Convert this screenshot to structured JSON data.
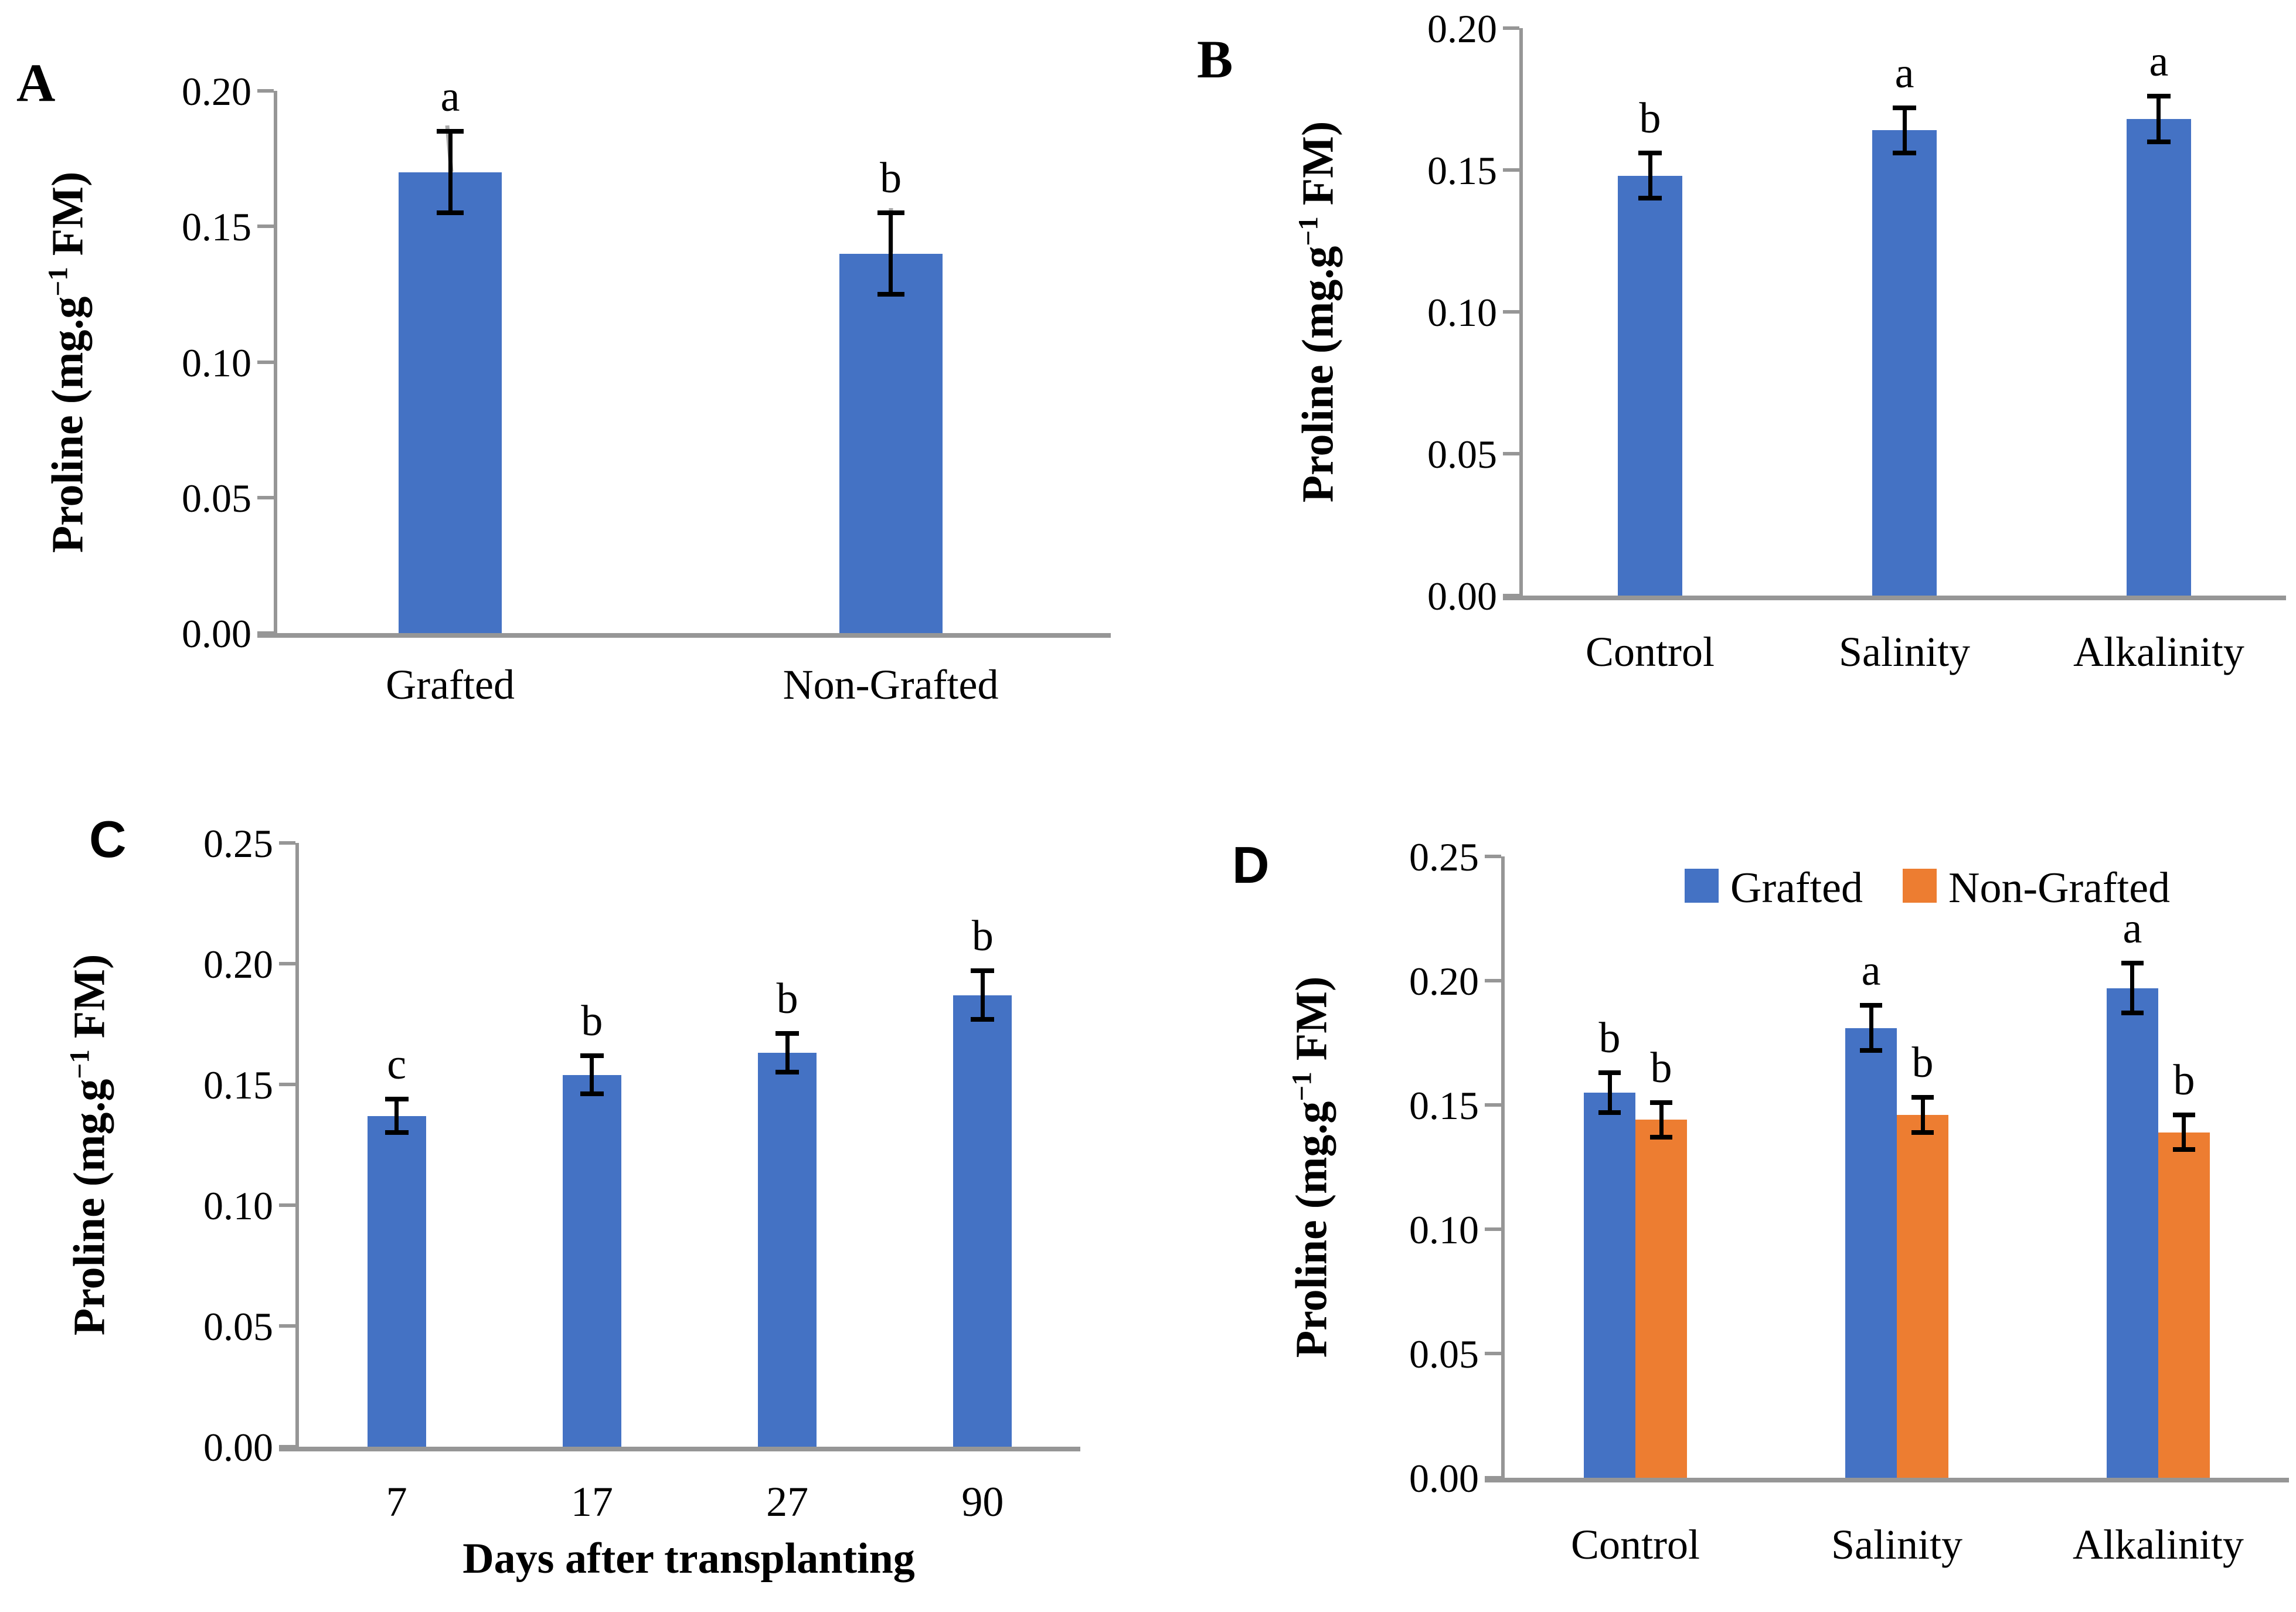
{
  "figure": {
    "background": "#ffffff",
    "units": "mg.g-1 FM"
  },
  "shared": {
    "ylabel": {
      "prefix": "Proline (mg.g",
      "sup": "−1",
      "suffix": " FM)"
    }
  },
  "colors": {
    "blue": "#4472C4",
    "orange": "#ED7D31",
    "axis_gray": "#969696",
    "error_black": "#000000",
    "leader_gray": "#ABABAB"
  },
  "chart_data": [
    {
      "type": "bar",
      "label": "A",
      "title": "",
      "xlabel": "",
      "ylabel": "Proline (mg.g−1 FM)",
      "ylim": [
        0,
        0.2
      ],
      "grid": false,
      "yticks": [
        "0.00",
        "0.05",
        "0.10",
        "0.15",
        "0.20"
      ],
      "categories": [
        "Grafted",
        "Non-Grafted"
      ],
      "series": [
        {
          "name": "",
          "color": "#4472C4",
          "values": [
            0.17,
            0.14
          ],
          "errors": [
            0.015,
            0.015
          ],
          "letters": [
            "a",
            "b"
          ]
        }
      ]
    },
    {
      "type": "bar",
      "label": "B",
      "title": "",
      "xlabel": "",
      "ylabel": "Proline (mg.g−1 FM)",
      "ylim": [
        0,
        0.2
      ],
      "grid": false,
      "yticks": [
        "0.00",
        "0.05",
        "0.10",
        "0.15",
        "0.20"
      ],
      "categories": [
        "Control",
        "Salinity",
        "Alkalinity"
      ],
      "series": [
        {
          "name": "",
          "color": "#4472C4",
          "values": [
            0.148,
            0.164,
            0.168
          ],
          "errors": [
            0.008,
            0.008,
            0.008
          ],
          "letters": [
            "b",
            "a",
            "a"
          ]
        }
      ]
    },
    {
      "type": "bar",
      "label": "C",
      "title": "",
      "xlabel": "Days after transplanting",
      "ylabel": "Proline (mg.g−1 FM)",
      "ylim": [
        0,
        0.25
      ],
      "grid": false,
      "yticks": [
        "0.00",
        "0.05",
        "0.10",
        "0.15",
        "0.20",
        "0.25"
      ],
      "categories": [
        "7",
        "17",
        "27",
        "90"
      ],
      "series": [
        {
          "name": "",
          "color": "#4472C4",
          "values": [
            0.137,
            0.154,
            0.163,
            0.187
          ],
          "errors": [
            0.007,
            0.008,
            0.008,
            0.01
          ],
          "letters": [
            "c",
            "b",
            "b",
            "b"
          ]
        }
      ]
    },
    {
      "type": "bar",
      "label": "D",
      "title": "",
      "xlabel": "",
      "ylabel": "Proline (mg.g−1 FM)",
      "ylim": [
        0,
        0.25
      ],
      "grid": false,
      "legend_position": "top",
      "yticks": [
        "0.00",
        "0.05",
        "0.10",
        "0.15",
        "0.20",
        "0.25"
      ],
      "categories": [
        "Control",
        "Salinity",
        "Alkalinity"
      ],
      "series": [
        {
          "name": "Grafted",
          "color": "#4472C4",
          "values": [
            0.155,
            0.181,
            0.197
          ],
          "errors": [
            0.008,
            0.009,
            0.01
          ],
          "letters": [
            "b",
            "a",
            "a"
          ]
        },
        {
          "name": "Non-Grafted",
          "color": "#ED7D31",
          "values": [
            0.144,
            0.146,
            0.139
          ],
          "errors": [
            0.007,
            0.007,
            0.007
          ],
          "letters": [
            "b",
            "b",
            "b"
          ]
        }
      ]
    }
  ]
}
